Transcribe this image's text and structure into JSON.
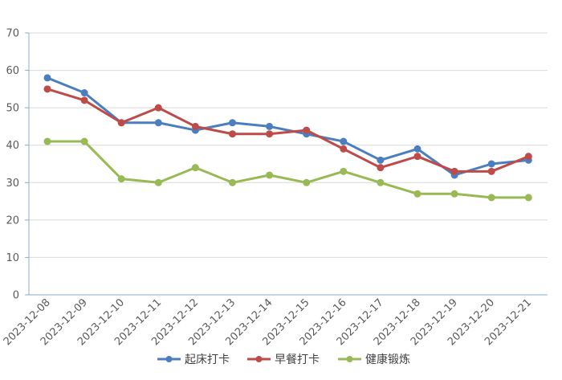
{
  "chart_data": {
    "type": "line",
    "title": "",
    "xlabel": "",
    "ylabel": "",
    "ylim": [
      0,
      70
    ],
    "yticks": [
      0,
      10,
      20,
      30,
      40,
      50,
      60,
      70
    ],
    "grid": true,
    "legend_position": "bottom",
    "categories": [
      "2023-12-08",
      "2023-12-09",
      "2023-12-10",
      "2023-12-11",
      "2023-12-12",
      "2023-12-13",
      "2023-12-14",
      "2023-12-15",
      "2023-12-16",
      "2023-12-17",
      "2023-12-18",
      "2023-12-19",
      "2023-12-20",
      "2023-12-21"
    ],
    "series": [
      {
        "name": "起床打卡",
        "color": "#4a7ebf",
        "values": [
          58,
          54,
          46,
          46,
          44,
          46,
          45,
          43,
          41,
          36,
          39,
          32,
          35,
          36
        ]
      },
      {
        "name": "早餐打卡",
        "color": "#be4b48",
        "values": [
          55,
          52,
          46,
          50,
          45,
          43,
          43,
          44,
          39,
          34,
          37,
          33,
          33,
          37
        ]
      },
      {
        "name": "健康锻炼",
        "color": "#98b954",
        "values": [
          41,
          41,
          31,
          30,
          34,
          30,
          32,
          30,
          33,
          30,
          27,
          27,
          26,
          26
        ]
      }
    ]
  }
}
